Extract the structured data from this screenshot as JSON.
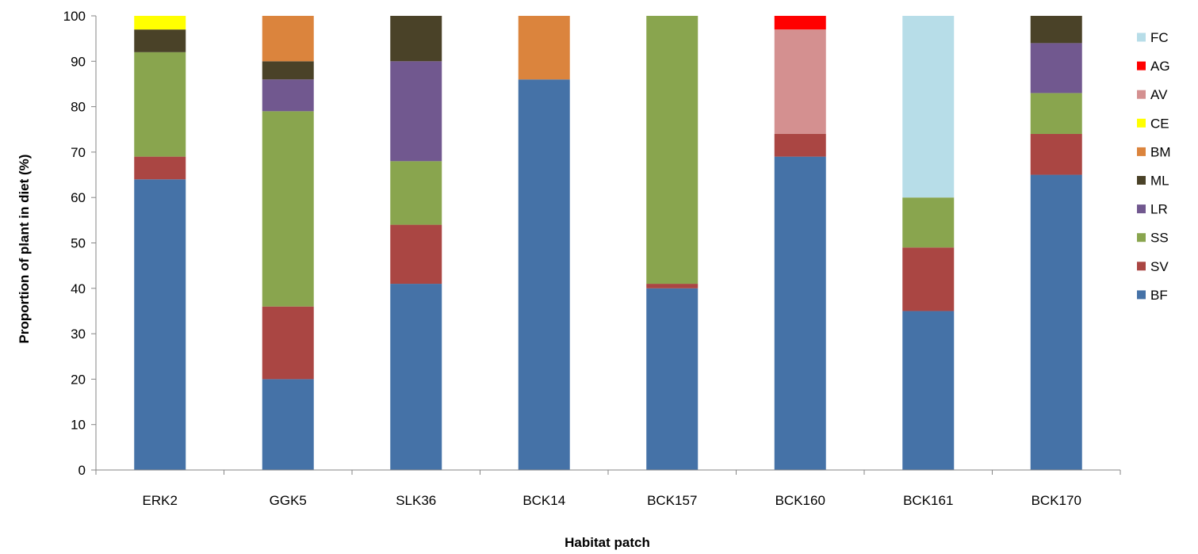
{
  "chart_data": {
    "type": "bar",
    "stacked": true,
    "title": "",
    "xlabel": "Habitat patch",
    "ylabel": "Proportion of plant in diet (%)",
    "ylim": [
      0,
      100
    ],
    "yticks": [
      "0",
      "10",
      "20",
      "30",
      "40",
      "50",
      "60",
      "70",
      "80",
      "90",
      "100"
    ],
    "grid": false,
    "legend_position": "right",
    "categories": [
      "ERK2",
      "GGK5",
      "SLK36",
      "BCK14",
      "BCK157",
      "BCK160",
      "BCK161",
      "BCK170"
    ],
    "series": [
      {
        "name": "BF",
        "color": "#4572A7",
        "values": [
          64,
          20,
          41,
          86,
          40,
          69,
          35,
          65
        ]
      },
      {
        "name": "SV",
        "color": "#AA4643",
        "values": [
          5,
          16,
          13,
          0,
          1,
          5,
          14,
          9
        ]
      },
      {
        "name": "SS",
        "color": "#89A54E",
        "values": [
          23,
          43,
          14,
          0,
          59,
          0,
          11,
          9
        ]
      },
      {
        "name": "LR",
        "color": "#71588F",
        "values": [
          0,
          7,
          22,
          0,
          0,
          0,
          0,
          11
        ]
      },
      {
        "name": "ML",
        "color": "#4A4228",
        "values": [
          5,
          4,
          10,
          0,
          0,
          0,
          0,
          6
        ]
      },
      {
        "name": "BM",
        "color": "#DB843D",
        "values": [
          0,
          10,
          0,
          14,
          0,
          0,
          0,
          0
        ]
      },
      {
        "name": "CE",
        "color": "#FFFF00",
        "values": [
          3,
          0,
          0,
          0,
          0,
          0,
          0,
          0
        ]
      },
      {
        "name": "AV",
        "color": "#D49090",
        "values": [
          0,
          0,
          0,
          0,
          0,
          23,
          0,
          0
        ]
      },
      {
        "name": "AG",
        "color": "#FF0000",
        "values": [
          0,
          0,
          0,
          0,
          0,
          3,
          0,
          0
        ]
      },
      {
        "name": "FC",
        "color": "#B7DDE8",
        "values": [
          0,
          0,
          0,
          0,
          0,
          0,
          40,
          0
        ]
      }
    ],
    "legend_order": [
      "FC",
      "AG",
      "AV",
      "CE",
      "BM",
      "ML",
      "LR",
      "SS",
      "SV",
      "BF"
    ]
  }
}
